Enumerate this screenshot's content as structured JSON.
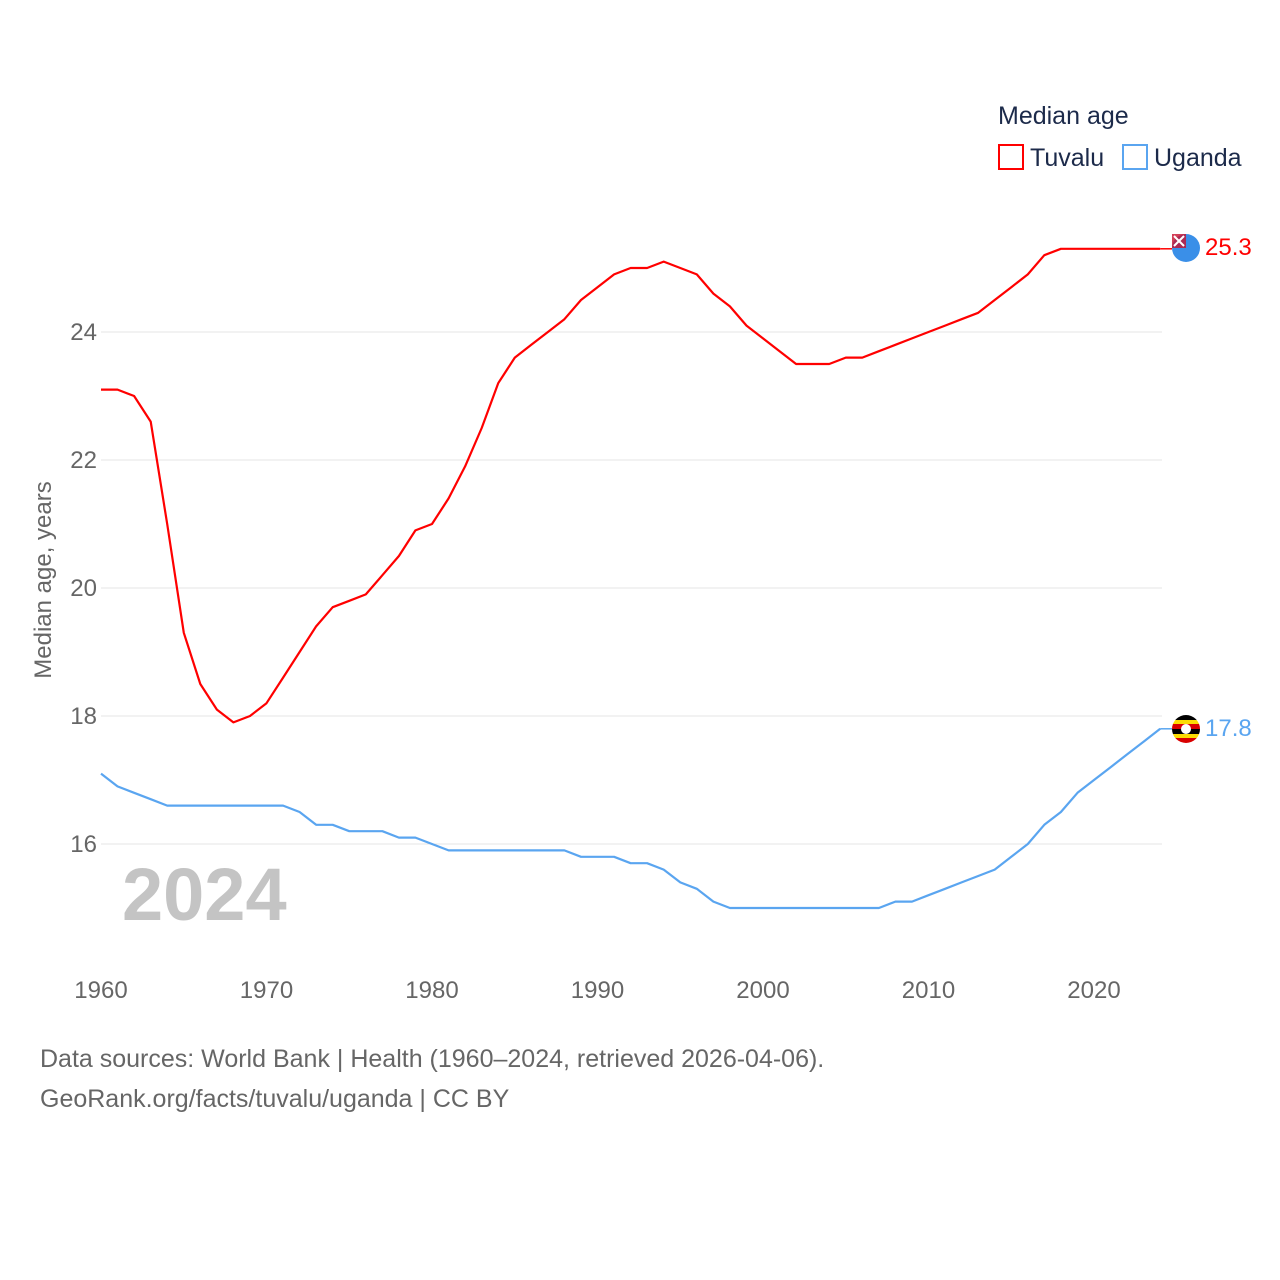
{
  "chart_data": {
    "type": "line",
    "legend_title": "Median age",
    "legend_position": "top-right",
    "ylabel": "Median age, years",
    "xlabel": "",
    "year_watermark": "2024",
    "x_ticks": [
      "1960",
      "1970",
      "1980",
      "1990",
      "2000",
      "2010",
      "2020"
    ],
    "y_ticks": [
      "16",
      "18",
      "20",
      "22",
      "24"
    ],
    "x": [
      1960,
      1961,
      1962,
      1963,
      1964,
      1965,
      1966,
      1967,
      1968,
      1969,
      1970,
      1971,
      1972,
      1973,
      1974,
      1975,
      1976,
      1977,
      1978,
      1979,
      1980,
      1981,
      1982,
      1983,
      1984,
      1985,
      1986,
      1987,
      1988,
      1989,
      1990,
      1991,
      1992,
      1993,
      1994,
      1995,
      1996,
      1997,
      1998,
      1999,
      2000,
      2001,
      2002,
      2003,
      2004,
      2005,
      2006,
      2007,
      2008,
      2009,
      2010,
      2011,
      2012,
      2013,
      2014,
      2015,
      2016,
      2017,
      2018,
      2019,
      2020,
      2021,
      2022,
      2023,
      2024
    ],
    "series": [
      {
        "name": "Tuvalu",
        "color": "#ff0000",
        "end_label": "25.3",
        "values": [
          23.1,
          23.1,
          23.0,
          22.6,
          21.0,
          19.3,
          18.5,
          18.1,
          17.9,
          18.0,
          18.2,
          18.6,
          19.0,
          19.4,
          19.7,
          19.8,
          19.9,
          20.2,
          20.5,
          20.9,
          21.0,
          21.4,
          21.9,
          22.5,
          23.2,
          23.6,
          23.8,
          24.0,
          24.2,
          24.5,
          24.7,
          24.9,
          25.0,
          25.0,
          25.1,
          25.0,
          24.9,
          24.6,
          24.4,
          24.1,
          23.9,
          23.7,
          23.5,
          23.5,
          23.5,
          23.6,
          23.6,
          23.7,
          23.8,
          23.9,
          24.0,
          24.1,
          24.2,
          24.3,
          24.5,
          24.7,
          24.9,
          25.2,
          25.3,
          25.3,
          25.3,
          25.3,
          25.3,
          25.3,
          25.3
        ]
      },
      {
        "name": "Uganda",
        "color": "#5aa5f0",
        "end_label": "17.8",
        "values": [
          17.1,
          16.9,
          16.8,
          16.7,
          16.6,
          16.6,
          16.6,
          16.6,
          16.6,
          16.6,
          16.6,
          16.6,
          16.5,
          16.3,
          16.3,
          16.2,
          16.2,
          16.2,
          16.1,
          16.1,
          16.0,
          15.9,
          15.9,
          15.9,
          15.9,
          15.9,
          15.9,
          15.9,
          15.9,
          15.8,
          15.8,
          15.8,
          15.7,
          15.7,
          15.6,
          15.4,
          15.3,
          15.1,
          15.0,
          15.0,
          15.0,
          15.0,
          15.0,
          15.0,
          15.0,
          15.0,
          15.0,
          15.0,
          15.1,
          15.1,
          15.2,
          15.3,
          15.4,
          15.5,
          15.6,
          15.8,
          16.0,
          16.3,
          16.5,
          16.8,
          17.0,
          17.2,
          17.4,
          17.6,
          17.8
        ]
      }
    ]
  },
  "footer": {
    "source": "Data sources: World Bank | Health (1960–2024, retrieved 2026-04-06).",
    "credit": "GeoRank.org/facts/tuvalu/uganda | CC BY"
  }
}
